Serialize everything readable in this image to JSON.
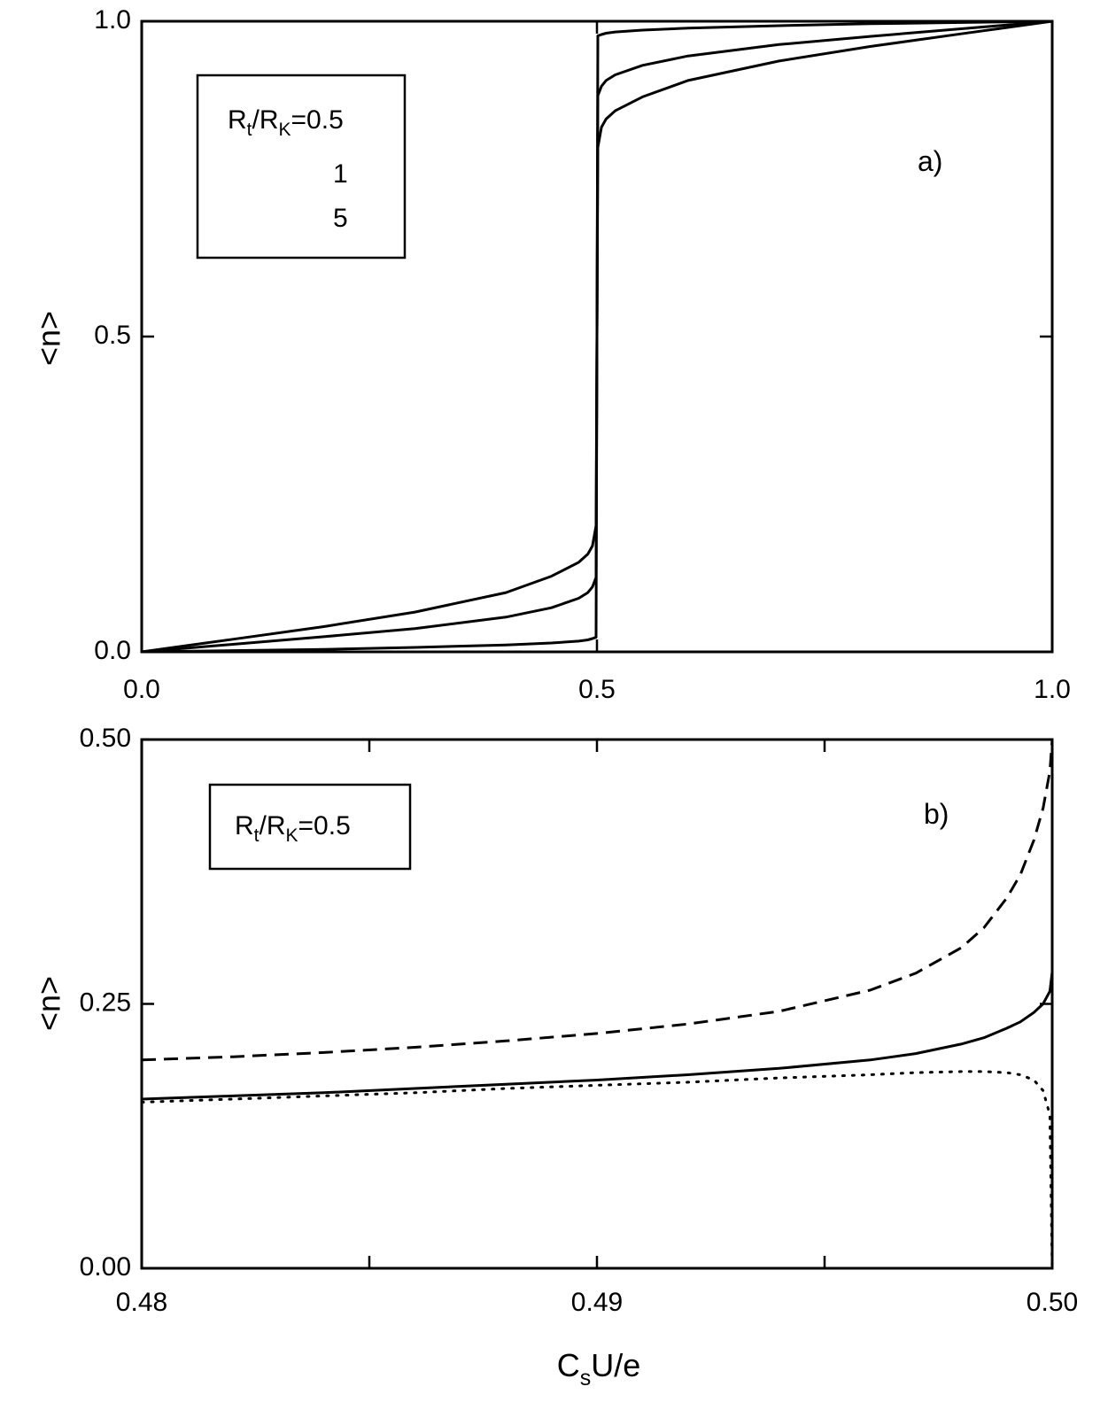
{
  "chart_data": [
    {
      "type": "line",
      "panel_label": "a)",
      "xlim": [
        0.0,
        1.0
      ],
      "ylim": [
        0.0,
        1.0
      ],
      "x_ticks": [
        0.0,
        0.5,
        1.0
      ],
      "x_tick_labels": [
        "0.0",
        "0.5",
        "1.0"
      ],
      "y_ticks": [
        0.0,
        0.5,
        1.0
      ],
      "y_tick_labels": [
        "0.0",
        "0.5",
        "1.0"
      ],
      "ylabel": "<n>",
      "xlabel": "",
      "grid": false,
      "legend": {
        "placement": "top-left",
        "prefix": "R",
        "sub1": "t",
        "mid": "/R",
        "sub2": "K",
        "suffix": "=0.5",
        "line2": "1",
        "line3": "5"
      },
      "series": [
        {
          "style": "solid",
          "x": [
            0.0,
            0.1,
            0.2,
            0.3,
            0.4,
            0.45,
            0.48,
            0.49,
            0.495,
            0.499,
            0.5,
            0.501,
            0.505,
            0.51,
            0.52,
            0.55,
            0.6,
            0.7,
            0.8,
            0.9,
            1.0
          ],
          "y": [
            0.0,
            0.002,
            0.004,
            0.007,
            0.011,
            0.014,
            0.017,
            0.019,
            0.021,
            0.023,
            0.5,
            0.977,
            0.979,
            0.981,
            0.983,
            0.986,
            0.989,
            0.993,
            0.996,
            0.998,
            1.0
          ]
        },
        {
          "style": "solid",
          "x": [
            0.0,
            0.05,
            0.1,
            0.2,
            0.3,
            0.4,
            0.45,
            0.48,
            0.49,
            0.495,
            0.499,
            0.5,
            0.501,
            0.505,
            0.51,
            0.52,
            0.55,
            0.6,
            0.7,
            0.8,
            0.9,
            0.95,
            1.0
          ],
          "y": [
            0.0,
            0.006,
            0.012,
            0.024,
            0.037,
            0.055,
            0.07,
            0.085,
            0.094,
            0.103,
            0.118,
            0.5,
            0.882,
            0.897,
            0.906,
            0.915,
            0.93,
            0.945,
            0.963,
            0.976,
            0.988,
            0.994,
            1.0
          ]
        },
        {
          "style": "solid",
          "x": [
            0.0,
            0.05,
            0.1,
            0.2,
            0.3,
            0.4,
            0.45,
            0.48,
            0.49,
            0.495,
            0.499,
            0.5,
            0.501,
            0.505,
            0.51,
            0.52,
            0.55,
            0.6,
            0.7,
            0.8,
            0.9,
            0.95,
            1.0
          ],
          "y": [
            0.0,
            0.01,
            0.02,
            0.04,
            0.063,
            0.094,
            0.12,
            0.142,
            0.155,
            0.168,
            0.2,
            0.5,
            0.8,
            0.832,
            0.845,
            0.858,
            0.88,
            0.906,
            0.937,
            0.96,
            0.98,
            0.99,
            1.0
          ]
        }
      ]
    },
    {
      "type": "line",
      "panel_label": "b)",
      "xlim": [
        0.48,
        0.5
      ],
      "ylim": [
        0.0,
        0.5
      ],
      "x_ticks": [
        0.48,
        0.49,
        0.5
      ],
      "x_tick_labels": [
        "0.48",
        "0.49",
        "0.50"
      ],
      "y_ticks": [
        0.0,
        0.25,
        0.5
      ],
      "y_tick_labels": [
        "0.00",
        "0.25",
        "0.50"
      ],
      "ylabel": "<n>",
      "xlabel_main": "C",
      "xlabel_sub": "s",
      "xlabel_rest": "U/e",
      "grid": false,
      "legend": {
        "placement": "top-left",
        "prefix": "R",
        "sub1": "t",
        "mid": "/R",
        "sub2": "K",
        "suffix": "=0.5"
      },
      "series": [
        {
          "style": "dashed",
          "x": [
            0.48,
            0.482,
            0.484,
            0.486,
            0.488,
            0.49,
            0.492,
            0.494,
            0.496,
            0.497,
            0.498,
            0.4985,
            0.499,
            0.4993,
            0.4996,
            0.4998,
            0.49995,
            0.5
          ],
          "y": [
            0.197,
            0.2,
            0.204,
            0.209,
            0.215,
            0.222,
            0.231,
            0.243,
            0.263,
            0.279,
            0.303,
            0.322,
            0.35,
            0.372,
            0.405,
            0.435,
            0.47,
            0.5
          ]
        },
        {
          "style": "solid",
          "x": [
            0.48,
            0.482,
            0.484,
            0.486,
            0.488,
            0.49,
            0.492,
            0.494,
            0.496,
            0.497,
            0.498,
            0.4985,
            0.499,
            0.4993,
            0.4996,
            0.4998,
            0.49995,
            0.5
          ],
          "y": [
            0.16,
            0.163,
            0.166,
            0.17,
            0.174,
            0.178,
            0.183,
            0.189,
            0.197,
            0.203,
            0.212,
            0.218,
            0.227,
            0.233,
            0.242,
            0.25,
            0.262,
            0.28
          ]
        },
        {
          "style": "dotted",
          "x": [
            0.48,
            0.482,
            0.484,
            0.486,
            0.488,
            0.49,
            0.492,
            0.494,
            0.496,
            0.497,
            0.498,
            0.4985,
            0.499,
            0.4993,
            0.4996,
            0.4998,
            0.49995,
            0.5
          ],
          "y": [
            0.157,
            0.16,
            0.163,
            0.166,
            0.17,
            0.173,
            0.176,
            0.18,
            0.183,
            0.185,
            0.186,
            0.186,
            0.185,
            0.183,
            0.178,
            0.168,
            0.145,
            0.0
          ]
        }
      ]
    }
  ]
}
